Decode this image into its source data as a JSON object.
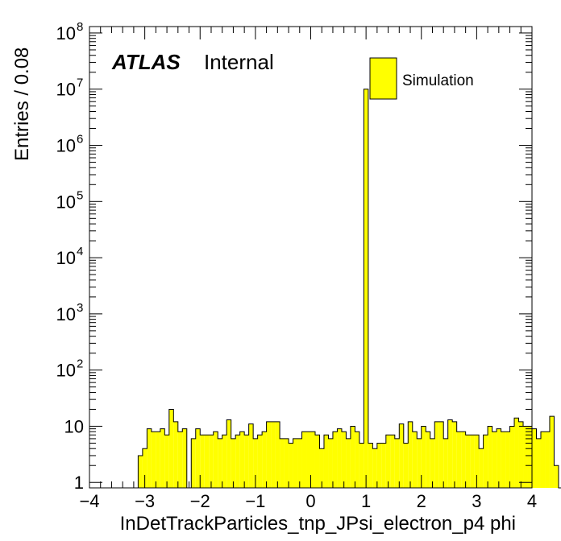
{
  "chart_data": {
    "type": "bar",
    "xlabel": "InDetTrackParticles_tnp_JPsi_electron_p4 phi",
    "ylabel": "Entries / 0.08",
    "xlim": [
      -4,
      4
    ],
    "ylim": [
      0.8,
      130000000
    ],
    "yscale": "log",
    "bin_width": 0.08,
    "x_ticks": [
      -4,
      -3,
      -2,
      -1,
      0,
      1,
      2,
      3,
      4
    ],
    "x_tick_labels": [
      "−4",
      "−3",
      "−2",
      "−1",
      "0",
      "1",
      "2",
      "3",
      "4"
    ],
    "y_ticks": [
      {
        "value": 1,
        "base": "1",
        "exp": ""
      },
      {
        "value": 10,
        "base": "10",
        "exp": ""
      },
      {
        "value": 100,
        "base": "10",
        "exp": "2"
      },
      {
        "value": 1000,
        "base": "10",
        "exp": "3"
      },
      {
        "value": 10000,
        "base": "10",
        "exp": "4"
      },
      {
        "value": 100000,
        "base": "10",
        "exp": "5"
      },
      {
        "value": 1000000,
        "base": "10",
        "exp": "6"
      },
      {
        "value": 10000000,
        "base": "10",
        "exp": "7"
      },
      {
        "value": 100000000,
        "base": "10",
        "exp": "8"
      }
    ],
    "bin_start": -3.2,
    "values": [
      0,
      3,
      4,
      9,
      8,
      8,
      9,
      7,
      20,
      12,
      8,
      9,
      0,
      6,
      9,
      7,
      7,
      7,
      8,
      6,
      7,
      13,
      6,
      7,
      8,
      7,
      11,
      6,
      7,
      8,
      12,
      12,
      12,
      6,
      6,
      5,
      6,
      6,
      8,
      8,
      8,
      7,
      4,
      7,
      6,
      8,
      9,
      8,
      6,
      10,
      8,
      5,
      10000000,
      5,
      4,
      5,
      5,
      7,
      7,
      6,
      11,
      5,
      12,
      8,
      6,
      10,
      8,
      6,
      12,
      12,
      6,
      13,
      12,
      8,
      8,
      7,
      7,
      7,
      4,
      7,
      10,
      8,
      9,
      8,
      8,
      10,
      14,
      12,
      10,
      10,
      9,
      6,
      8,
      8,
      15,
      2,
      0
    ],
    "series": [
      {
        "name": "Simulation",
        "color": "#ffff00"
      }
    ],
    "legend_position": "top-right",
    "annotation": {
      "bold": "ATLAS",
      "normal": "Internal"
    }
  }
}
